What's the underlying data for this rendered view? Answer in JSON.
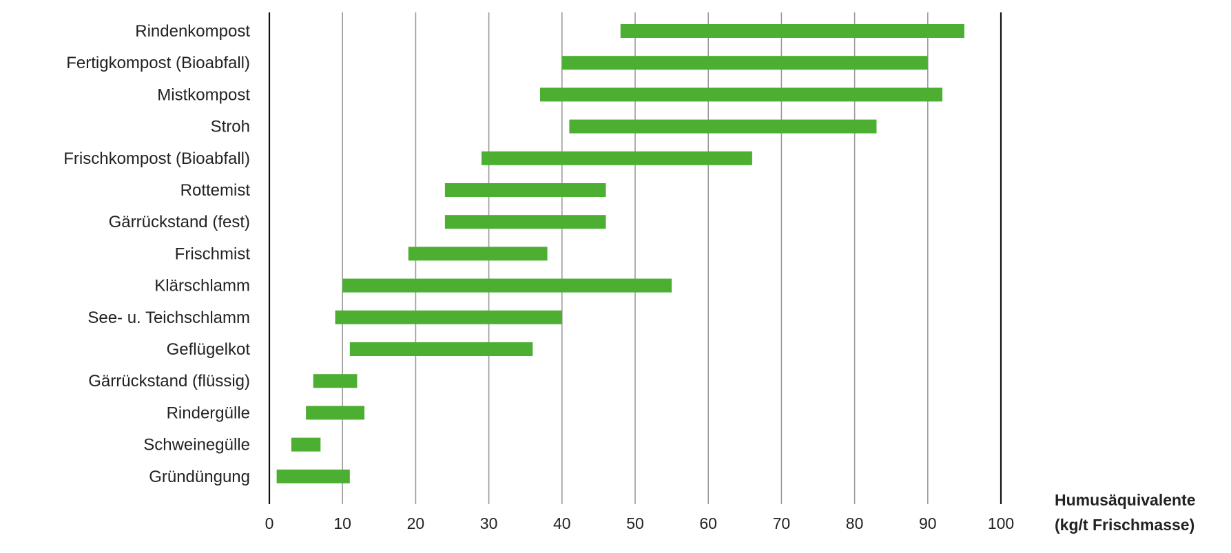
{
  "chart_data": {
    "type": "bar",
    "orientation": "horizontal-range",
    "title": "",
    "xlabel_line1": "Humusäquivalente",
    "xlabel_line2": "(kg/t Frischmasse)",
    "ylabel": "",
    "xlim": [
      0,
      100
    ],
    "xticks": [
      "0",
      "10",
      "20",
      "30",
      "40",
      "50",
      "60",
      "70",
      "80",
      "90",
      "100"
    ],
    "grid": true,
    "legend": "none",
    "bar_color": "#4caf32",
    "grid_color": "#9a9a9a",
    "axis_color": "#111111",
    "categories": [
      "Rindenkompost",
      "Fertigkompost (Bioabfall)",
      "Mistkompost",
      "Stroh",
      "Frischkompost (Bioabfall)",
      "Rottemist",
      "Gärrückstand (fest)",
      "Frischmist",
      "Klärschlamm",
      "See- u. Teichschlamm",
      "Geflügelkot",
      "Gärrückstand (flüssig)",
      "Rindergülle",
      "Schweinegülle",
      "Gründüngung"
    ],
    "ranges": [
      [
        48,
        95
      ],
      [
        40,
        90
      ],
      [
        37,
        92
      ],
      [
        41,
        83
      ],
      [
        29,
        66
      ],
      [
        24,
        46
      ],
      [
        24,
        46
      ],
      [
        19,
        38
      ],
      [
        10,
        55
      ],
      [
        9,
        40
      ],
      [
        11,
        36
      ],
      [
        6,
        12
      ],
      [
        5,
        13
      ],
      [
        3,
        7
      ],
      [
        1,
        11
      ]
    ]
  }
}
